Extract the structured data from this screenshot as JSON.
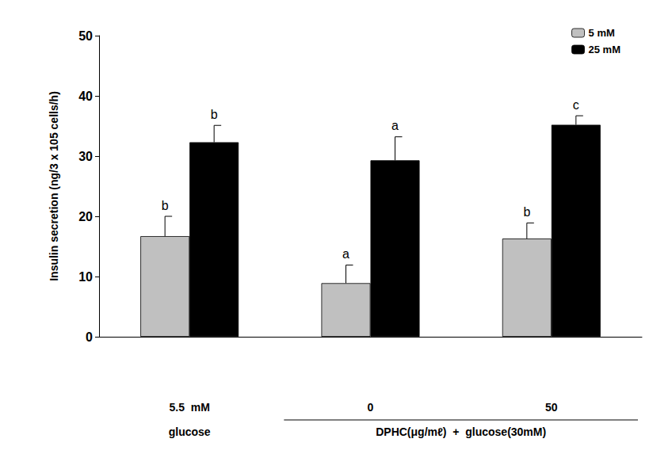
{
  "chart_data": {
    "type": "bar",
    "y_label": "Insulin secretion (ng/3 x 105 cells/h)",
    "categories": [
      "5.5  mM",
      "0",
      "50"
    ],
    "x_groups": [
      {
        "label": "glucose",
        "categories": [
          "5.5  mM"
        ],
        "line": false
      },
      {
        "label": "DPHC(μg/mℓ)  +  glucose(30mM)",
        "categories": [
          "0",
          "50"
        ],
        "line": true
      }
    ],
    "series": [
      {
        "name": "5 mM",
        "color": "#c0c0c0",
        "values": [
          16.7,
          8.9,
          16.3
        ],
        "errors": [
          3.3,
          3.0,
          2.6
        ],
        "annotations": [
          "b",
          "a",
          "b"
        ]
      },
      {
        "name": "25 mM",
        "color": "#000000",
        "values": [
          32.3,
          29.3,
          35.2
        ],
        "errors": [
          2.8,
          3.9,
          1.5
        ],
        "annotations": [
          "b",
          "a",
          "c"
        ]
      }
    ],
    "ylim": [
      0,
      50
    ],
    "yticks": [
      0,
      10,
      20,
      30,
      40,
      50
    ],
    "grid": false,
    "legend": "top-right"
  }
}
